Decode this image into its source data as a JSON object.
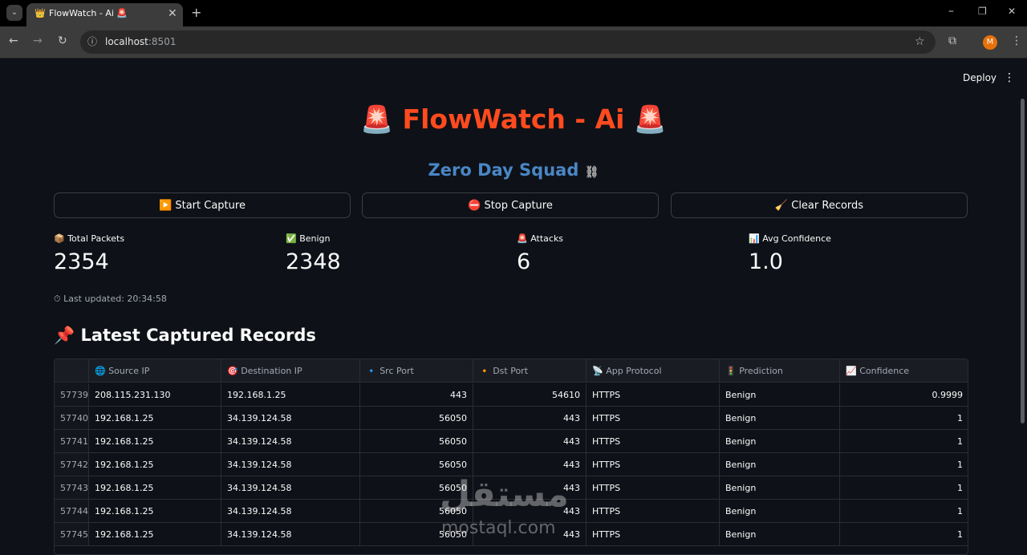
{
  "browser": {
    "tab_title": "FlowWatch - Ai 🚨",
    "url_host": "localhost",
    "url_port": ":8501",
    "profile_initial": "M"
  },
  "app": {
    "deploy": "Deploy",
    "title": "🚨 FlowWatch - Ai 🚨",
    "subtitle": "Zero Day Squad",
    "buttons": [
      "▶️ Start Capture",
      "⛔ Stop Capture",
      "🧹 Clear Records"
    ],
    "metrics": [
      {
        "label": "📦 Total Packets",
        "value": "2354"
      },
      {
        "label": "✅ Benign",
        "value": "2348"
      },
      {
        "label": "🚨 Attacks",
        "value": "6"
      },
      {
        "label": "📊 Avg Confidence",
        "value": "1.0"
      }
    ],
    "last_updated": "⏱ Last updated: 20:34:58",
    "section_heading": "📌 Latest Captured Records",
    "table": {
      "columns": [
        "🌐 Source IP",
        "🎯 Destination IP",
        "🔹 Src Port",
        "🔸 Dst Port",
        "📡 App Protocol",
        "🚦 Prediction",
        "📈 Confidence"
      ],
      "rows": [
        [
          "57739",
          "208.115.231.130",
          "192.168.1.25",
          "443",
          "54610",
          "HTTPS",
          "Benign",
          "0.9999"
        ],
        [
          "57740",
          "192.168.1.25",
          "34.139.124.58",
          "56050",
          "443",
          "HTTPS",
          "Benign",
          "1"
        ],
        [
          "57741",
          "192.168.1.25",
          "34.139.124.58",
          "56050",
          "443",
          "HTTPS",
          "Benign",
          "1"
        ],
        [
          "57742",
          "192.168.1.25",
          "34.139.124.58",
          "56050",
          "443",
          "HTTPS",
          "Benign",
          "1"
        ],
        [
          "57743",
          "192.168.1.25",
          "34.139.124.58",
          "56050",
          "443",
          "HTTPS",
          "Benign",
          "1"
        ],
        [
          "57744",
          "192.168.1.25",
          "34.139.124.58",
          "56050",
          "443",
          "HTTPS",
          "Benign",
          "1"
        ],
        [
          "57745",
          "192.168.1.25",
          "34.139.124.58",
          "56050",
          "443",
          "HTTPS",
          "Benign",
          "1"
        ]
      ]
    },
    "watermark": [
      "مستقل",
      "mostaql.com"
    ]
  }
}
